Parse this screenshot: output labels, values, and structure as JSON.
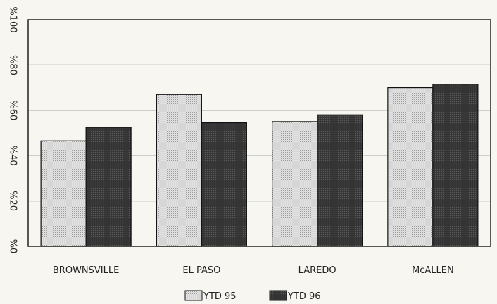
{
  "chart_data": {
    "type": "bar",
    "categories": [
      "BROWNSVILLE",
      "EL PASO",
      "LAREDO",
      "McALLEN"
    ],
    "series": [
      {
        "name": "YTD 95",
        "values": [
          46.5,
          67.0,
          55.0,
          70.0
        ]
      },
      {
        "name": "YTD 96",
        "values": [
          52.5,
          54.5,
          58.0,
          71.5
        ]
      }
    ],
    "ylim": [
      0,
      100
    ],
    "yticks": [
      0,
      20,
      40,
      60,
      80,
      100
    ],
    "ytick_labels": [
      "%0",
      "%20",
      "%40",
      "%60",
      "%80",
      "%100"
    ],
    "grid": true,
    "legend_position": "bottom",
    "colors": {
      "series1": "#d4d4d4",
      "series2": "#3e3e3e",
      "axis": "#222222",
      "background": "#f7f6f1"
    }
  }
}
